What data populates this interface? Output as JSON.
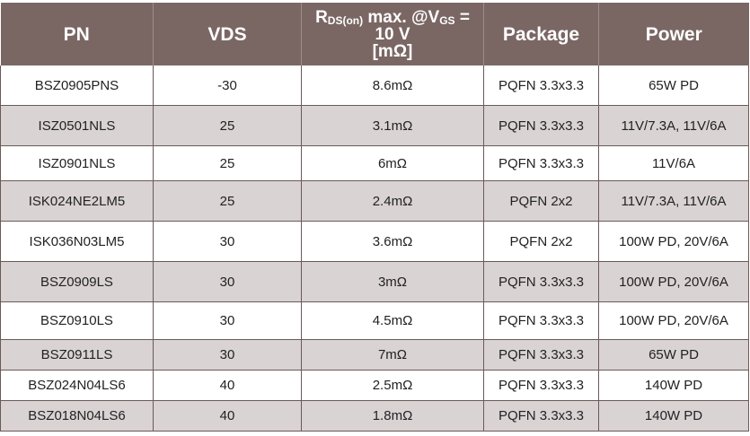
{
  "headers": {
    "pn": "PN",
    "vds": "VDS",
    "rds_r": "R",
    "rds_sub_on": "DS(on)",
    "rds_mid": " max. @V",
    "rds_sub_gs": "GS",
    "rds_tail": " =",
    "rds_line2": "10 V",
    "rds_line3": "[mΩ]",
    "package": "Package",
    "power": "Power"
  },
  "rows": [
    {
      "pn": "BSZ0905PNS",
      "vds": "-30",
      "rds": "8.6mΩ",
      "package": "PQFN 3.3x3.3",
      "power": "65W PD"
    },
    {
      "pn": "ISZ0501NLS",
      "vds": "25",
      "rds": "3.1mΩ",
      "package": "PQFN 3.3x3.3",
      "power": "11V/7.3A, 11V/6A"
    },
    {
      "pn": "ISZ0901NLS",
      "vds": "25",
      "rds": "6mΩ",
      "package": "PQFN 3.3x3.3",
      "power": "11V/6A"
    },
    {
      "pn": "ISK024NE2LM5",
      "vds": "25",
      "rds": "2.4mΩ",
      "package": "PQFN 2x2",
      "power": "11V/7.3A, 11V/6A"
    },
    {
      "pn": "ISK036N03LM5",
      "vds": "30",
      "rds": "3.6mΩ",
      "package": "PQFN 2x2",
      "power": "100W PD, 20V/6A"
    },
    {
      "pn": "BSZ0909LS",
      "vds": "30",
      "rds": "3mΩ",
      "package": "PQFN 3.3x3.3",
      "power": "100W PD, 20V/6A"
    },
    {
      "pn": "BSZ0910LS",
      "vds": "30",
      "rds": "4.5mΩ",
      "package": "PQFN 3.3x3.3",
      "power": "100W PD, 20V/6A"
    },
    {
      "pn": "BSZ0911LS",
      "vds": "30",
      "rds": "7mΩ",
      "package": "PQFN 3.3x3.3",
      "power": "65W PD"
    },
    {
      "pn": "BSZ024N04LS6",
      "vds": "40",
      "rds": "2.5mΩ",
      "package": "PQFN 3.3x3.3",
      "power": "140W PD"
    },
    {
      "pn": "BSZ018N04LS6",
      "vds": "40",
      "rds": "1.8mΩ",
      "package": "PQFN 3.3x3.3",
      "power": "140W PD"
    }
  ],
  "colors": {
    "header_bg": "#7a6764",
    "row_alt_bg": "#d9d3d3",
    "row_bg": "#ffffff"
  }
}
